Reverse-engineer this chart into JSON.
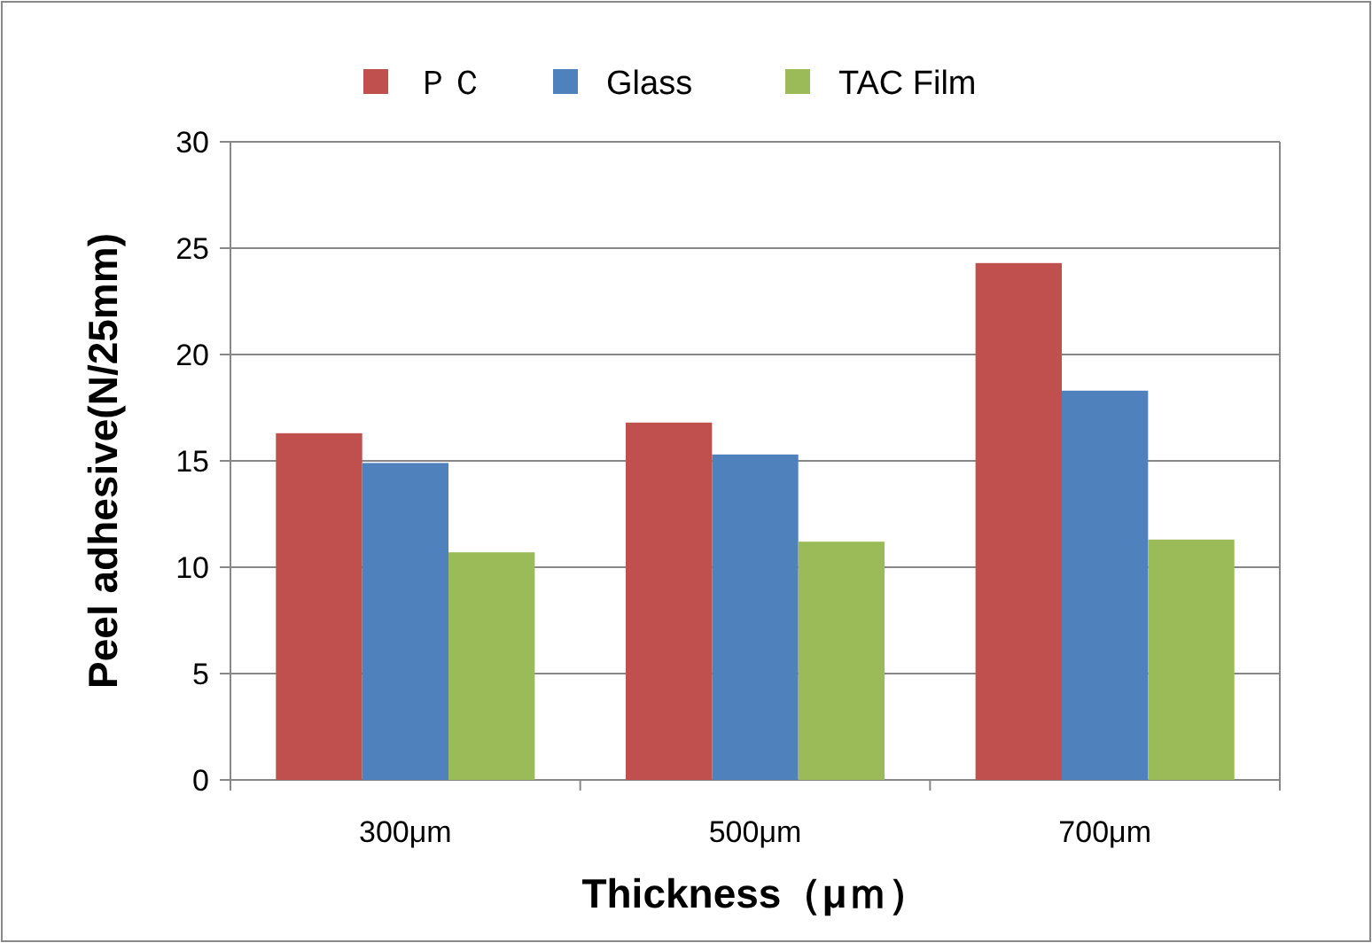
{
  "chart_data": {
    "type": "bar",
    "xlabel": "Thickness（μｍ）",
    "ylabel": "Peel adhesive(N/25mm)",
    "categories": [
      "300μm",
      "500μm",
      "700μm"
    ],
    "series": [
      {
        "name": "ＰＣ",
        "color": "#c0504d",
        "values": [
          16.3,
          16.8,
          24.3
        ]
      },
      {
        "name": "Glass",
        "color": "#4f81bd",
        "values": [
          14.9,
          15.3,
          18.3
        ]
      },
      {
        "name": "TAC Film",
        "color": "#9bbb59",
        "values": [
          10.7,
          11.2,
          11.3
        ]
      }
    ],
    "ylim": [
      0,
      30
    ],
    "yticks": [
      0,
      5,
      10,
      15,
      20,
      25,
      30
    ],
    "grid": "y",
    "legend": "top"
  }
}
